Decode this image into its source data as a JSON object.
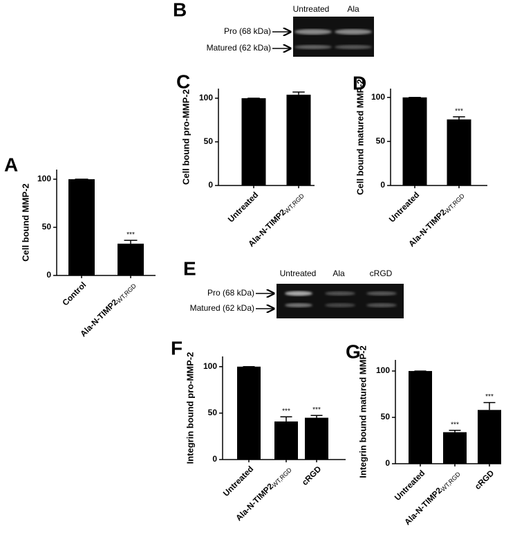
{
  "panel_labels": [
    "A",
    "B",
    "C",
    "D",
    "E",
    "F",
    "G"
  ],
  "gels": [
    {
      "lanes": [
        "Untreated",
        "Ala"
      ],
      "bands": [
        "Pro (68 kDa)",
        "Matured (62 kDa)"
      ]
    },
    {
      "lanes": [
        "Untreated",
        "Ala",
        "cRGD"
      ],
      "bands": [
        "Pro (68 kDa)",
        "Matured (62 kDa)"
      ]
    }
  ],
  "chart_data": [
    {
      "type": "bar",
      "ylabel": "Cell bound MMP-2",
      "categories": [
        "Control",
        {
          "label": "Ala-N-TIMP2",
          "subscript": "WT,RGD"
        }
      ],
      "values": [
        100,
        33
      ],
      "errors": [
        0,
        3.5
      ],
      "significance": {
        "1": "***"
      },
      "color": "#000000",
      "ylim": [
        0,
        110
      ],
      "yticks": [
        0,
        50,
        100
      ]
    },
    {
      "type": "bar",
      "ylabel": "Cell bound pro-MMP-2",
      "categories": [
        "Untreated",
        {
          "label": "Ala-N-TIMP2",
          "subscript": "WT,RGD"
        }
      ],
      "values": [
        100,
        104
      ],
      "errors": [
        0,
        3
      ],
      "color": "#000000",
      "ylim": [
        0,
        111
      ],
      "yticks": [
        0,
        50,
        100
      ]
    },
    {
      "type": "bar",
      "ylabel": "Cell bound matured MMP-2",
      "categories": [
        "Untreated",
        {
          "label": "Ala-N-TIMP2",
          "subscript": "WT,RGD"
        }
      ],
      "values": [
        100,
        75
      ],
      "errors": [
        0,
        3
      ],
      "significance": {
        "1": "***"
      },
      "color": "#000000",
      "ylim": [
        0,
        110
      ],
      "yticks": [
        0,
        50,
        100
      ]
    },
    {
      "type": "bar",
      "ylabel": "Integrin bound pro-MMP-2",
      "categories": [
        "Untreated",
        {
          "label": "Ala-N-TIMP2",
          "subscript": "WT,RGD"
        },
        "cRGD"
      ],
      "values": [
        100,
        41,
        45
      ],
      "errors": [
        0,
        5,
        2.5
      ],
      "significance": {
        "1": "***",
        "2": "***"
      },
      "color": "#000000",
      "ylim": [
        0,
        111
      ],
      "yticks": [
        0,
        50,
        100
      ]
    },
    {
      "type": "bar",
      "ylabel": "Integrin bound matured MMP-2",
      "categories": [
        "Untreated",
        {
          "label": "Ala-N-TIMP2",
          "subscript": "WT,RGD"
        },
        "cRGD"
      ],
      "values": [
        100,
        34,
        58
      ],
      "errors": [
        0,
        2,
        8
      ],
      "significance": {
        "1": "***",
        "2": "***"
      },
      "color": "#000000",
      "ylim": [
        0,
        112
      ],
      "yticks": [
        0,
        50,
        100
      ]
    }
  ]
}
